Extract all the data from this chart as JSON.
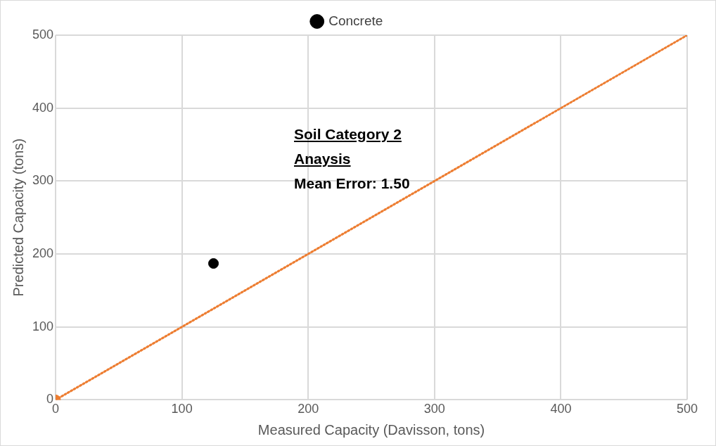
{
  "chart_data": {
    "type": "scatter",
    "xlabel": "Measured Capacity (Davisson, tons)",
    "ylabel": "Predicted Capacity (tons)",
    "annotations": [
      "Soil Category 2",
      "Anaysis",
      "Mean Error: 1.50"
    ],
    "series": [
      {
        "name": "Concrete",
        "color": "#000000",
        "x": [
          125
        ],
        "values": [
          187
        ]
      },
      {
        "type": "line",
        "color": "#ed7d31",
        "x": [
          0,
          500
        ],
        "values": [
          0,
          500
        ],
        "line_style": "dotted",
        "marker": "none"
      },
      {
        "color": "#ed7d31",
        "x": [
          0
        ],
        "values": [
          0
        ]
      }
    ],
    "xlim": [
      0,
      500
    ],
    "ylim": [
      0,
      500
    ],
    "xticks": [
      0,
      100,
      200,
      300,
      400,
      500
    ],
    "yticks": [
      0,
      100,
      200,
      300,
      400,
      500
    ],
    "grid": true,
    "legend": "top",
    "marker": "circle"
  }
}
